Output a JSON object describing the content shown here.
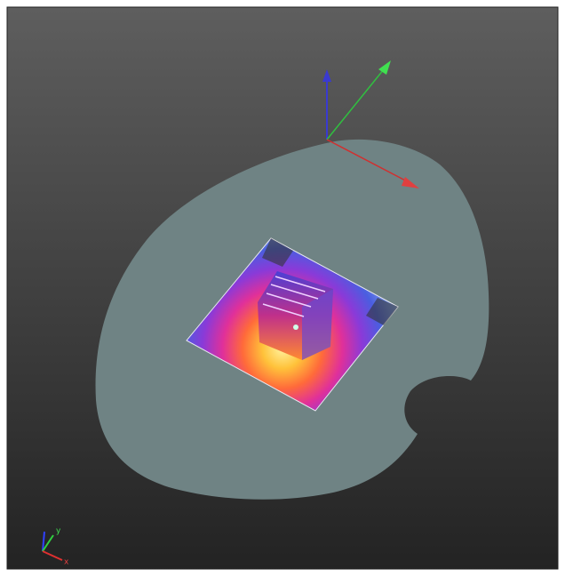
{
  "viewport": {
    "axis_triad": {
      "x_label": "x",
      "y_label": "y"
    }
  }
}
